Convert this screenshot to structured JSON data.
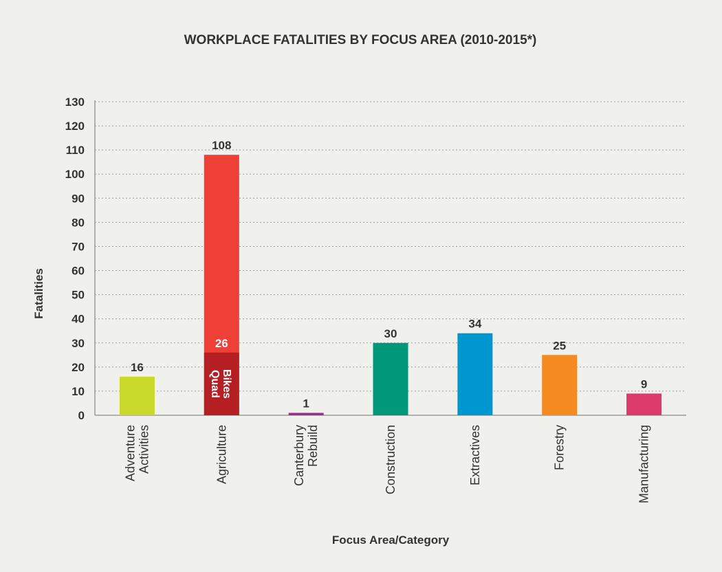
{
  "chart_data": {
    "type": "bar",
    "title": "WORKPLACE FATALITIES BY FOCUS AREA (2010-2015*)",
    "xlabel": "Focus Area/Category",
    "ylabel": "Fatalities",
    "ylim": [
      0,
      130
    ],
    "yticks": [
      0,
      10,
      20,
      30,
      40,
      50,
      60,
      70,
      80,
      90,
      100,
      110,
      120,
      130
    ],
    "grid": true,
    "legend": "none",
    "bars": [
      {
        "category": [
          "Adventure",
          "Activities"
        ],
        "value": 16,
        "label": "16",
        "color": "#c8d92b"
      },
      {
        "category": [
          "Agriculture"
        ],
        "value": 108,
        "label": "108",
        "color": "#ee4036",
        "sub_segment": {
          "name": [
            "Quad",
            "Bikes"
          ],
          "value": 26,
          "label": "26",
          "color": "#b51f24"
        }
      },
      {
        "category": [
          "Canterbury",
          "Rebuild"
        ],
        "value": 1,
        "label": "1",
        "color": "#9b2f8d"
      },
      {
        "category": [
          "Construction"
        ],
        "value": 30,
        "label": "30",
        "color": "#00977a"
      },
      {
        "category": [
          "Extractives"
        ],
        "value": 34,
        "label": "34",
        "color": "#0097d0"
      },
      {
        "category": [
          "Forestry"
        ],
        "value": 25,
        "label": "25",
        "color": "#f58a20"
      },
      {
        "category": [
          "Manufacturing"
        ],
        "value": 9,
        "label": "9",
        "color": "#dc3b6c"
      }
    ]
  }
}
